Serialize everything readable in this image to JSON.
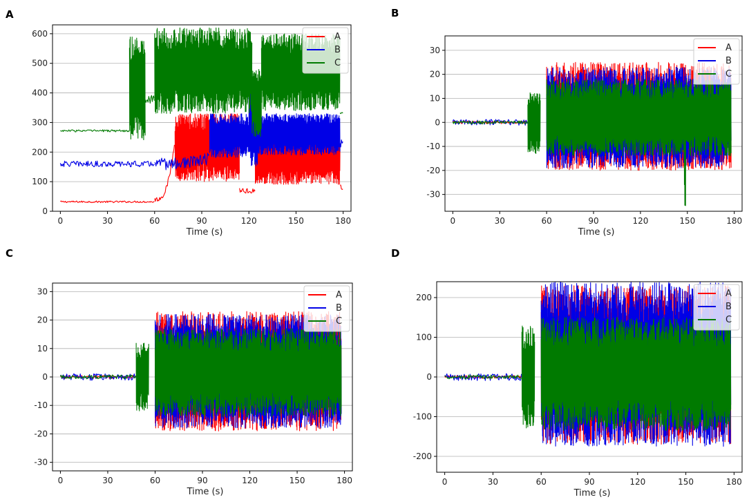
{
  "figure": {
    "panel_letters": [
      "A",
      "B",
      "C",
      "D"
    ]
  },
  "colors": {
    "A": "#ff0000",
    "B": "#0000e6",
    "C": "#007a00",
    "grid": "#b0b0b0"
  },
  "chart_data": [
    {
      "panel": "A",
      "type": "line",
      "title": "",
      "xlabel": "Time (s)",
      "ylabel": "",
      "xlim": [
        -5,
        185
      ],
      "ylim": [
        0,
        630
      ],
      "xticks": [
        0,
        30,
        60,
        90,
        120,
        150,
        180
      ],
      "yticks": [
        0,
        100,
        200,
        300,
        400,
        500,
        600
      ],
      "grid": "horizontal",
      "legend_position": "top-right",
      "series": [
        {
          "name": "A",
          "color": "#ff0000",
          "segments": [
            {
              "x": [
                0,
                60
              ],
              "base": 32,
              "amp": 3
            },
            {
              "x": [
                60,
                73
              ],
              "base": 40,
              "amp": 8,
              "ramp_to": 250
            },
            {
              "x": [
                73,
                114
              ],
              "lo": 100,
              "hi": 330
            },
            {
              "x": [
                114,
                124
              ],
              "base": 70,
              "amp": 10
            },
            {
              "x": [
                124,
                178
              ],
              "lo": 90,
              "hi": 270
            },
            {
              "x": [
                178,
                180
              ],
              "base": 80,
              "amp": 10
            }
          ]
        },
        {
          "name": "B",
          "color": "#0000e6",
          "segments": [
            {
              "x": [
                0,
                60
              ],
              "base": 160,
              "amp": 10
            },
            {
              "x": [
                60,
                95
              ],
              "base": 160,
              "amp": 20,
              "ramp_to": 180
            },
            {
              "x": [
                95,
                120
              ],
              "lo": 180,
              "hi": 330
            },
            {
              "x": [
                120,
                126
              ],
              "lo": 150,
              "hi": 420
            },
            {
              "x": [
                126,
                178
              ],
              "lo": 190,
              "hi": 330
            },
            {
              "x": [
                178,
                180
              ],
              "base": 230,
              "amp": 15
            }
          ]
        },
        {
          "name": "C",
          "color": "#007a00",
          "segments": [
            {
              "x": [
                0,
                44
              ],
              "base": 272,
              "amp": 4
            },
            {
              "x": [
                44,
                54
              ],
              "lo": 240,
              "hi": 590
            },
            {
              "x": [
                54,
                60
              ],
              "base": 380,
              "amp": 15
            },
            {
              "x": [
                60,
                122
              ],
              "lo": 330,
              "hi": 620
            },
            {
              "x": [
                122,
                128
              ],
              "lo": 250,
              "hi": 480
            },
            {
              "x": [
                128,
                178
              ],
              "lo": 340,
              "hi": 600
            },
            {
              "x": [
                178,
                180
              ],
              "base": 330,
              "amp": 5
            }
          ]
        }
      ]
    },
    {
      "panel": "B",
      "type": "line",
      "title": "",
      "xlabel": "Time (s)",
      "ylabel": "",
      "xlim": [
        -5,
        185
      ],
      "ylim": [
        -37,
        36
      ],
      "xticks": [
        0,
        30,
        60,
        90,
        120,
        150,
        180
      ],
      "yticks": [
        -30,
        -20,
        -10,
        0,
        10,
        20,
        30
      ],
      "grid": "horizontal",
      "legend_position": "top-right",
      "series": [
        {
          "name": "A",
          "color": "#ff0000",
          "segments": [
            {
              "x": [
                0,
                48
              ],
              "base": 0,
              "amp": 0.6
            },
            {
              "x": [
                60,
                178
              ],
              "lo": -20,
              "hi": 25
            }
          ]
        },
        {
          "name": "B",
          "color": "#0000e6",
          "segments": [
            {
              "x": [
                0,
                48
              ],
              "base": 0,
              "amp": 1.2
            },
            {
              "x": [
                60,
                178
              ],
              "lo": -19,
              "hi": 23
            }
          ]
        },
        {
          "name": "C",
          "color": "#007a00",
          "segments": [
            {
              "x": [
                0,
                48
              ],
              "base": 0,
              "amp": 0.7
            },
            {
              "x": [
                48,
                56
              ],
              "lo": -13,
              "hi": 13
            },
            {
              "x": [
                60,
                178
              ],
              "lo": -14,
              "hi": 18
            },
            {
              "x": [
                148,
                149
              ],
              "lo": -35,
              "hi": 5
            }
          ]
        }
      ]
    },
    {
      "panel": "C",
      "type": "line",
      "title": "",
      "xlabel": "Time (s)",
      "ylabel": "",
      "xlim": [
        -5,
        185
      ],
      "ylim": [
        -33,
        33
      ],
      "xticks": [
        0,
        30,
        60,
        90,
        120,
        150,
        180
      ],
      "yticks": [
        -30,
        -20,
        -10,
        0,
        10,
        20,
        30
      ],
      "grid": "horizontal",
      "legend_position": "top-right",
      "series": [
        {
          "name": "A",
          "color": "#ff0000",
          "segments": [
            {
              "x": [
                0,
                48
              ],
              "base": 0,
              "amp": 0.6
            },
            {
              "x": [
                60,
                178
              ],
              "lo": -19,
              "hi": 23
            }
          ]
        },
        {
          "name": "B",
          "color": "#0000e6",
          "segments": [
            {
              "x": [
                0,
                48
              ],
              "base": 0,
              "amp": 1.2
            },
            {
              "x": [
                60,
                178
              ],
              "lo": -18,
              "hi": 22
            }
          ]
        },
        {
          "name": "C",
          "color": "#007a00",
          "segments": [
            {
              "x": [
                0,
                48
              ],
              "base": 0,
              "amp": 0.7
            },
            {
              "x": [
                48,
                56
              ],
              "lo": -12,
              "hi": 12
            },
            {
              "x": [
                60,
                178
              ],
              "lo": -14,
              "hi": 17
            }
          ]
        }
      ]
    },
    {
      "panel": "D",
      "type": "line",
      "title": "",
      "xlabel": "Time (s)",
      "ylabel": "",
      "xlim": [
        -5,
        185
      ],
      "ylim": [
        -240,
        240
      ],
      "xticks": [
        0,
        30,
        60,
        90,
        120,
        150,
        180
      ],
      "yticks": [
        -200,
        -100,
        0,
        100,
        200
      ],
      "grid": "horizontal",
      "legend_position": "top-right",
      "series": [
        {
          "name": "A",
          "color": "#ff0000",
          "segments": [
            {
              "x": [
                0,
                48
              ],
              "base": 0,
              "amp": 4
            },
            {
              "x": [
                60,
                178
              ],
              "lo": -170,
              "hi": 230
            }
          ]
        },
        {
          "name": "B",
          "color": "#0000e6",
          "segments": [
            {
              "x": [
                0,
                48
              ],
              "base": 0,
              "amp": 9
            },
            {
              "x": [
                60,
                178
              ],
              "lo": -175,
              "hi": 240
            }
          ]
        },
        {
          "name": "C",
          "color": "#007a00",
          "segments": [
            {
              "x": [
                0,
                48
              ],
              "base": 0,
              "amp": 5
            },
            {
              "x": [
                48,
                56
              ],
              "lo": -130,
              "hi": 130
            },
            {
              "x": [
                60,
                178
              ],
              "lo": -135,
              "hi": 150
            }
          ]
        }
      ]
    }
  ]
}
